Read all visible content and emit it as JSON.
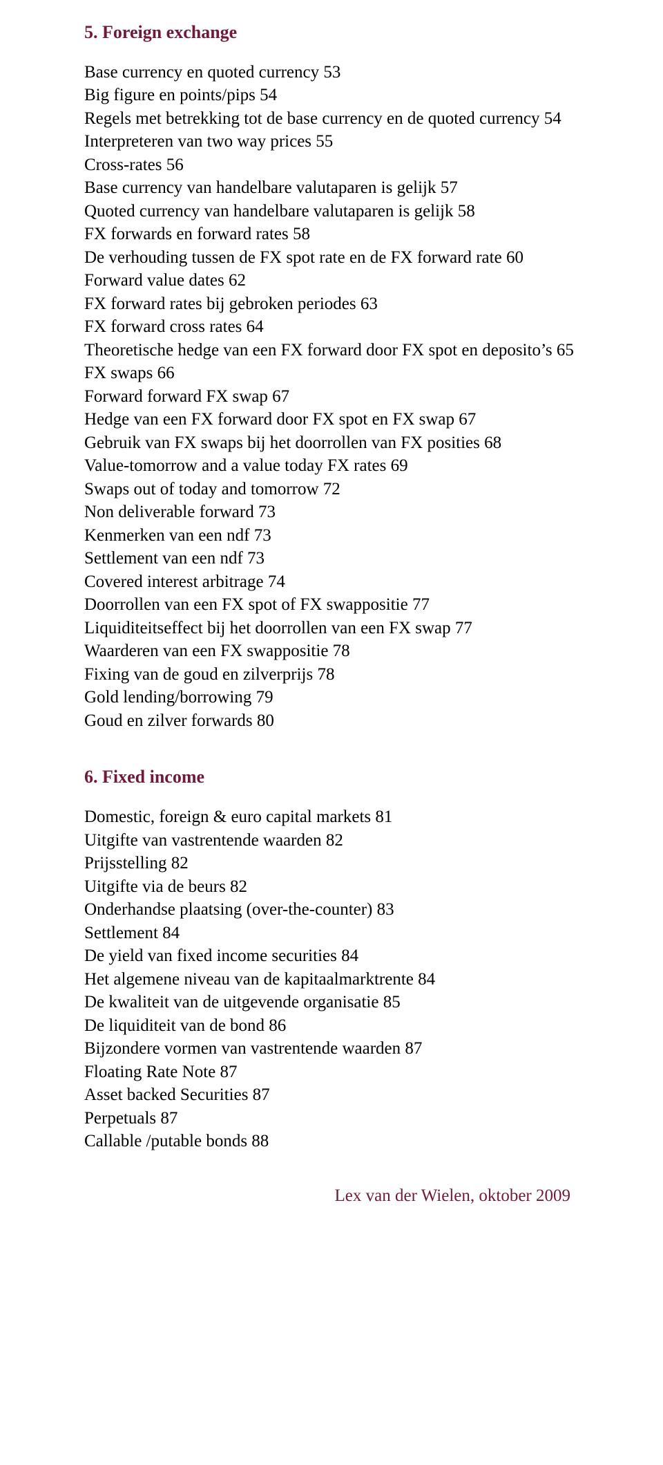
{
  "colors": {
    "heading": "#70193d",
    "body_text": "#000000",
    "footer_text": "#70193d",
    "background": "#ffffff"
  },
  "typography": {
    "font_family": "Times New Roman",
    "heading_fontsize_pt": 19,
    "body_fontsize_pt": 18,
    "heading_bold": true
  },
  "sections": [
    {
      "heading": "5. Foreign exchange",
      "items": [
        "Base currency en quoted currency 53",
        "Big figure en points/pips 54",
        "Regels met betrekking tot de base currency en de quoted currency 54",
        "Interpreteren van two way prices 55",
        "Cross-rates 56",
        "Base currency van handelbare valutaparen is gelijk 57",
        "Quoted currency van handelbare valutaparen is gelijk 58",
        "FX forwards en forward rates 58",
        "De verhouding tussen de FX spot rate en de FX forward rate 60",
        "Forward value dates 62",
        "FX forward rates bij gebroken periodes 63",
        "FX forward cross rates 64",
        "Theoretische hedge van een FX forward door FX spot en deposito’s 65",
        "FX swaps 66",
        "Forward forward FX swap 67",
        "Hedge van een FX forward door FX spot en FX swap 67",
        "Gebruik van FX swaps bij het doorrollen van FX posities 68",
        "Value-tomorrow and a value today FX rates 69",
        "Swaps out of today and tomorrow 72",
        "Non deliverable forward 73",
        "Kenmerken van een ndf 73",
        "Settlement van een ndf 73",
        "Covered interest arbitrage 74",
        "Doorrollen van een FX spot of FX swappositie 77",
        "Liquiditeitseffect bij het doorrollen van een FX swap 77",
        "Waarderen van een FX swappositie 78",
        "Fixing van de goud en zilverprijs 78",
        "Gold lending/borrowing 79",
        "Goud en zilver forwards 80"
      ]
    },
    {
      "heading": "6. Fixed income",
      "items": [
        "Domestic, foreign & euro capital markets 81",
        "Uitgifte van vastrentende waarden 82",
        "Prijsstelling 82",
        "Uitgifte via de beurs 82",
        "Onderhandse plaatsing (over-the-counter) 83",
        "Settlement 84",
        "De yield van fixed income securities 84",
        "Het algemene niveau van de kapitaalmarktrente 84",
        "De kwaliteit van de uitgevende organisatie 85",
        "De liquiditeit van de bond 86",
        "Bijzondere vormen van vastrentende waarden 87",
        "Floating Rate Note 87",
        "Asset backed Securities 87",
        "Perpetuals 87",
        "Callable /putable bonds 88"
      ]
    }
  ],
  "footer": "Lex van der Wielen, oktober 2009"
}
